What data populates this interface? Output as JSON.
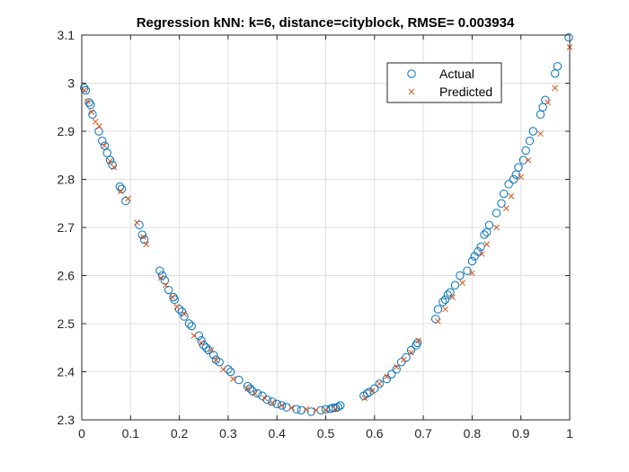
{
  "chart_data": {
    "type": "scatter",
    "title": "Regression kNN: k=6, distance=cityblock, RMSE= 0.003934",
    "xlabel": "",
    "ylabel": "",
    "xlim": [
      0,
      1
    ],
    "ylim": [
      2.3,
      3.1
    ],
    "xticks": [
      0,
      0.1,
      0.2,
      0.3,
      0.4,
      0.5,
      0.6,
      0.7,
      0.8,
      0.9,
      1
    ],
    "xtick_labels": [
      "0",
      "0.1",
      "0.2",
      "0.3",
      "0.4",
      "0.5",
      "0.6",
      "0.7",
      "0.8",
      "0.9",
      "1"
    ],
    "yticks": [
      2.3,
      2.4,
      2.5,
      2.6,
      2.7,
      2.8,
      2.9,
      3.0,
      3.1
    ],
    "ytick_labels": [
      "2.3",
      "2.4",
      "2.5",
      "2.6",
      "2.7",
      "2.8",
      "2.9",
      "3",
      "3.1"
    ],
    "grid": true,
    "legend": "top-right",
    "series": [
      {
        "name": "Actual",
        "marker": "circle",
        "color": "#0072BD",
        "x": [
          0.005,
          0.008,
          0.015,
          0.018,
          0.022,
          0.035,
          0.042,
          0.047,
          0.052,
          0.058,
          0.063,
          0.078,
          0.082,
          0.09,
          0.118,
          0.124,
          0.128,
          0.16,
          0.165,
          0.17,
          0.178,
          0.188,
          0.19,
          0.2,
          0.205,
          0.21,
          0.22,
          0.225,
          0.24,
          0.245,
          0.25,
          0.255,
          0.26,
          0.27,
          0.275,
          0.282,
          0.3,
          0.305,
          0.322,
          0.34,
          0.345,
          0.35,
          0.36,
          0.37,
          0.38,
          0.39,
          0.4,
          0.41,
          0.42,
          0.44,
          0.45,
          0.47,
          0.49,
          0.5,
          0.51,
          0.515,
          0.52,
          0.525,
          0.53,
          0.578,
          0.585,
          0.59,
          0.6,
          0.61,
          0.625,
          0.635,
          0.645,
          0.655,
          0.665,
          0.675,
          0.685,
          0.688,
          0.725,
          0.73,
          0.74,
          0.745,
          0.75,
          0.755,
          0.765,
          0.775,
          0.79,
          0.8,
          0.805,
          0.812,
          0.818,
          0.825,
          0.83,
          0.835,
          0.85,
          0.86,
          0.865,
          0.875,
          0.885,
          0.89,
          0.895,
          0.905,
          0.91,
          0.918,
          0.925,
          0.94,
          0.945,
          0.95,
          0.97,
          0.975,
          0.998
        ],
        "y": [
          2.99,
          2.985,
          2.96,
          2.955,
          2.935,
          2.9,
          2.88,
          2.87,
          2.855,
          2.84,
          2.83,
          2.785,
          2.78,
          2.755,
          2.705,
          2.685,
          2.675,
          2.61,
          2.6,
          2.59,
          2.57,
          2.555,
          2.55,
          2.53,
          2.525,
          2.515,
          2.5,
          2.495,
          2.475,
          2.465,
          2.455,
          2.45,
          2.445,
          2.435,
          2.425,
          2.42,
          2.405,
          2.4,
          2.383,
          2.37,
          2.365,
          2.36,
          2.355,
          2.35,
          2.342,
          2.338,
          2.333,
          2.33,
          2.326,
          2.322,
          2.32,
          2.317,
          2.32,
          2.322,
          2.323,
          2.325,
          2.325,
          2.327,
          2.33,
          2.35,
          2.355,
          2.358,
          2.365,
          2.375,
          2.385,
          2.395,
          2.405,
          2.42,
          2.43,
          2.445,
          2.455,
          2.46,
          2.51,
          2.53,
          2.545,
          2.55,
          2.56,
          2.565,
          2.58,
          2.6,
          2.61,
          2.63,
          2.64,
          2.65,
          2.66,
          2.685,
          2.69,
          2.705,
          2.73,
          2.75,
          2.77,
          2.79,
          2.8,
          2.81,
          2.825,
          2.84,
          2.86,
          2.88,
          2.9,
          2.935,
          2.95,
          2.965,
          3.02,
          3.035,
          3.095
        ]
      },
      {
        "name": "Predicted",
        "marker": "x",
        "color": "#D95319",
        "x": [
          0.005,
          0.012,
          0.02,
          0.028,
          0.036,
          0.046,
          0.058,
          0.066,
          0.08,
          0.095,
          0.113,
          0.126,
          0.132,
          0.162,
          0.172,
          0.186,
          0.195,
          0.21,
          0.23,
          0.245,
          0.265,
          0.275,
          0.29,
          0.31,
          0.34,
          0.355,
          0.375,
          0.39,
          0.41,
          0.43,
          0.46,
          0.48,
          0.5,
          0.52,
          0.58,
          0.595,
          0.61,
          0.625,
          0.645,
          0.66,
          0.675,
          0.69,
          0.73,
          0.745,
          0.76,
          0.78,
          0.8,
          0.82,
          0.83,
          0.85,
          0.87,
          0.88,
          0.9,
          0.915,
          0.94,
          0.955,
          0.97,
          1.0
        ],
        "y": [
          2.985,
          2.962,
          2.94,
          2.92,
          2.91,
          2.87,
          2.838,
          2.825,
          2.775,
          2.76,
          2.71,
          2.68,
          2.665,
          2.595,
          2.58,
          2.555,
          2.535,
          2.52,
          2.475,
          2.46,
          2.445,
          2.425,
          2.405,
          2.385,
          2.365,
          2.355,
          2.345,
          2.335,
          2.33,
          2.325,
          2.322,
          2.32,
          2.32,
          2.322,
          2.345,
          2.36,
          2.375,
          2.39,
          2.41,
          2.425,
          2.44,
          2.465,
          2.505,
          2.53,
          2.555,
          2.585,
          2.605,
          2.645,
          2.665,
          2.7,
          2.74,
          2.765,
          2.805,
          2.84,
          2.895,
          2.96,
          2.99,
          3.075
        ]
      }
    ]
  }
}
